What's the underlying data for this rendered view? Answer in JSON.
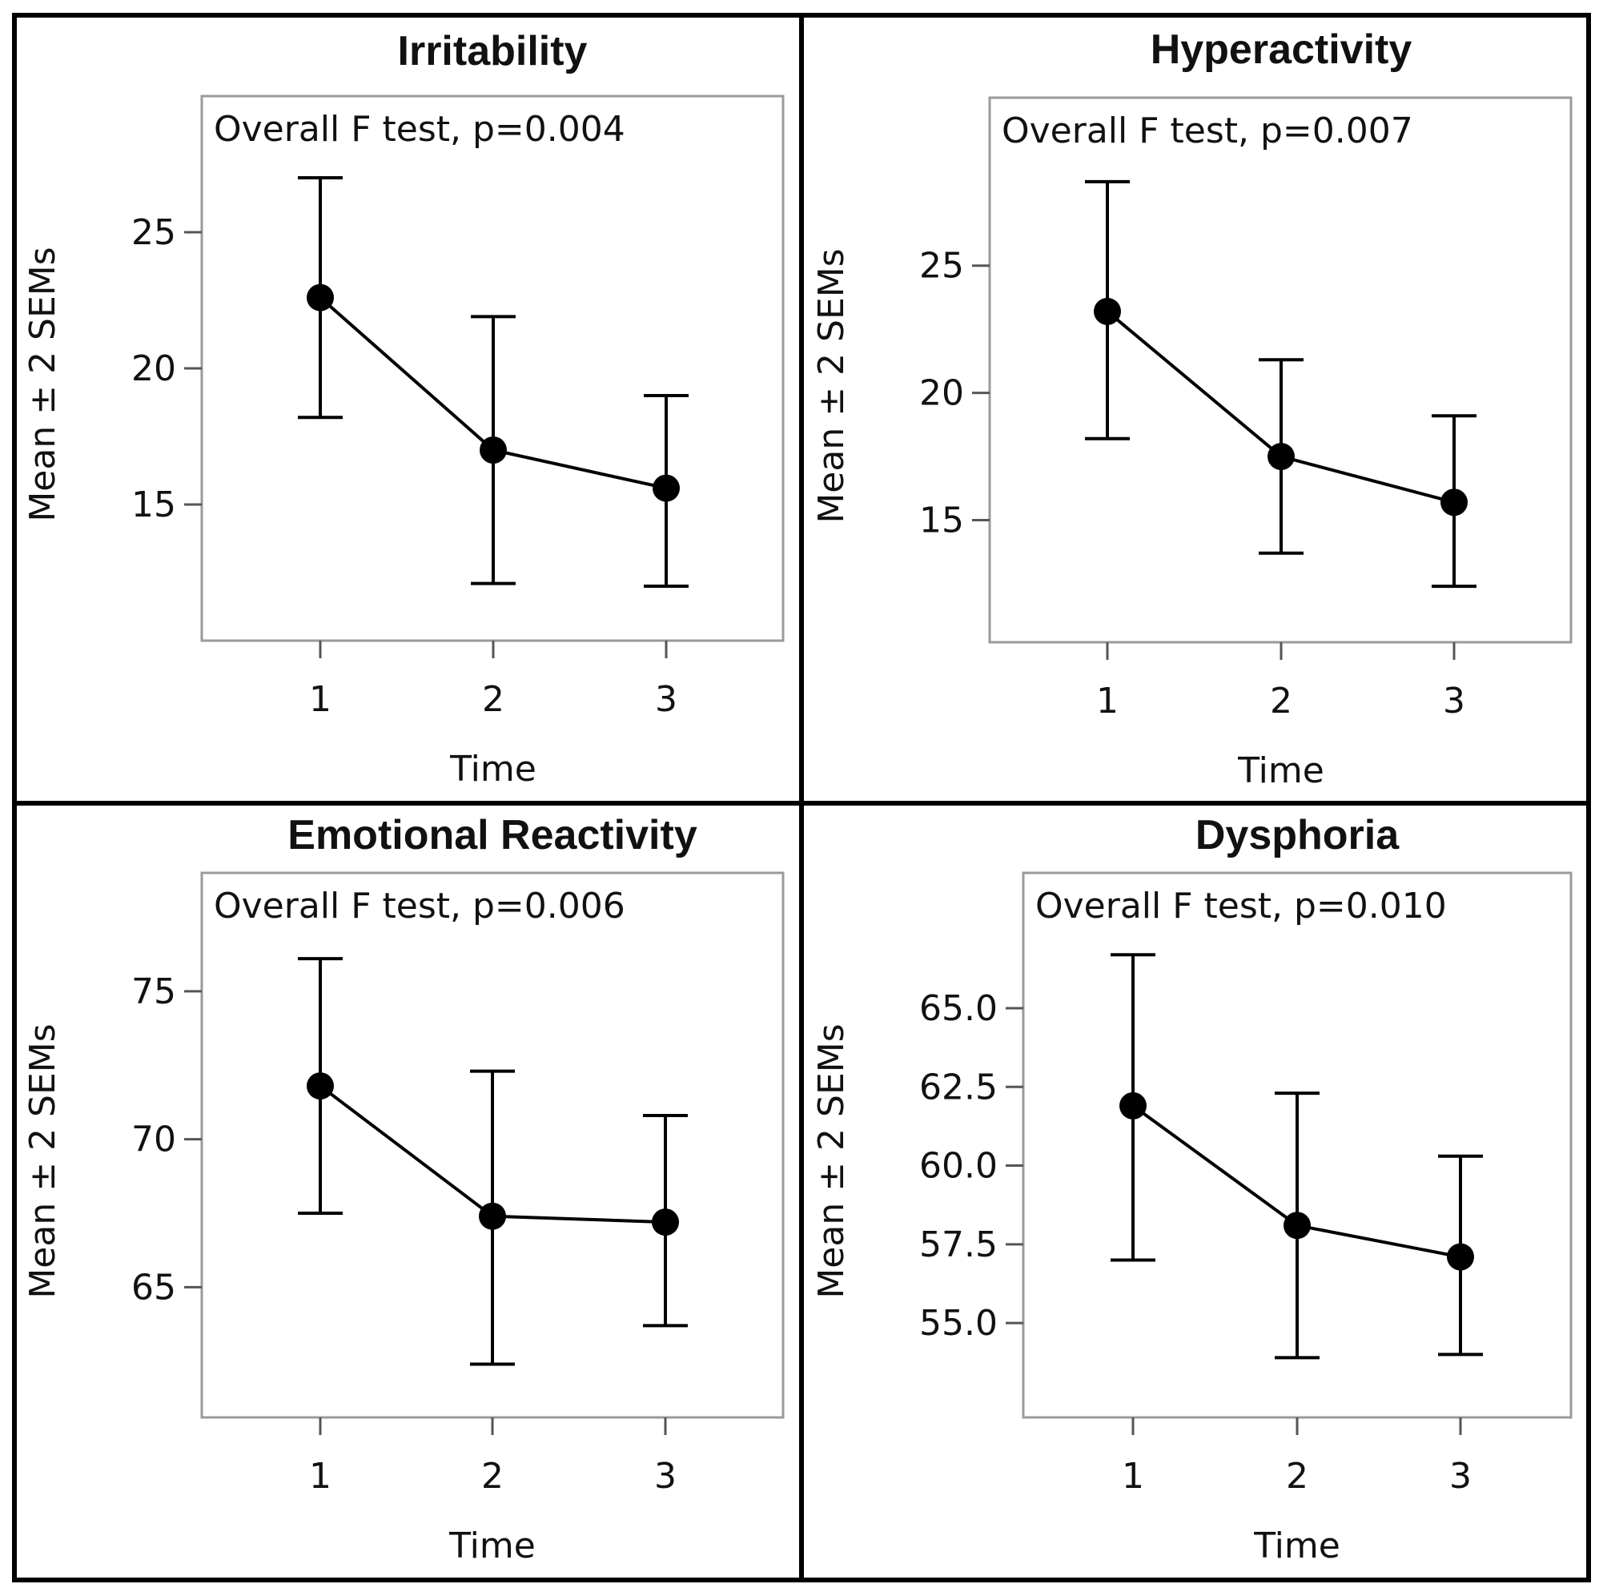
{
  "chart_data": [
    {
      "type": "line",
      "title": "Irritability",
      "annotation": "Overall F test, p=0.004",
      "xlabel": "Time",
      "ylabel": "Mean ± 2 SEMs",
      "categories": [
        "1",
        "2",
        "3"
      ],
      "values": [
        22.6,
        17.0,
        15.6
      ],
      "error_lower": [
        18.2,
        12.1,
        12.0
      ],
      "error_upper": [
        27.0,
        21.9,
        19.0
      ],
      "yticks": [
        15,
        20,
        25
      ],
      "ytick_labels": [
        "15",
        "20",
        "25"
      ],
      "ylim": [
        10.0,
        30.0
      ]
    },
    {
      "type": "line",
      "title": "Hyperactivity",
      "annotation": "Overall F test, p=0.007",
      "xlabel": "Time",
      "ylabel": "Mean ± 2 SEMs",
      "categories": [
        "1",
        "2",
        "3"
      ],
      "values": [
        23.2,
        17.5,
        15.7
      ],
      "error_lower": [
        18.2,
        13.7,
        12.4
      ],
      "error_upper": [
        28.3,
        21.3,
        19.1
      ],
      "yticks": [
        15,
        20,
        25
      ],
      "ytick_labels": [
        "15",
        "20",
        "25"
      ],
      "ylim": [
        10.2,
        31.6
      ]
    },
    {
      "type": "line",
      "title": "Emotional Reactivity",
      "annotation": "Overall F test, p=0.006",
      "xlabel": "Time",
      "ylabel": "Mean ± 2 SEMs",
      "categories": [
        "1",
        "2",
        "3"
      ],
      "values": [
        71.8,
        67.4,
        67.2
      ],
      "error_lower": [
        67.5,
        62.4,
        63.7
      ],
      "error_upper": [
        76.1,
        72.3,
        70.8
      ],
      "yticks": [
        65,
        70,
        75
      ],
      "ytick_labels": [
        "65",
        "70",
        "75"
      ],
      "ylim": [
        60.6,
        79.0
      ]
    },
    {
      "type": "line",
      "title": "Dysphoria",
      "annotation": "Overall F test, p=0.010",
      "xlabel": "Time",
      "ylabel": "Mean ± 2 SEMs",
      "categories": [
        "1",
        "2",
        "3"
      ],
      "values": [
        61.9,
        58.1,
        57.1
      ],
      "error_lower": [
        57.0,
        53.9,
        54.0
      ],
      "error_upper": [
        66.7,
        62.3,
        60.3
      ],
      "yticks": [
        55.0,
        57.5,
        60.0,
        62.5,
        65.0
      ],
      "ytick_labels": [
        "55.0",
        "57.5",
        "60.0",
        "62.5",
        "65.0"
      ],
      "ylim": [
        52.0,
        69.3
      ]
    }
  ]
}
